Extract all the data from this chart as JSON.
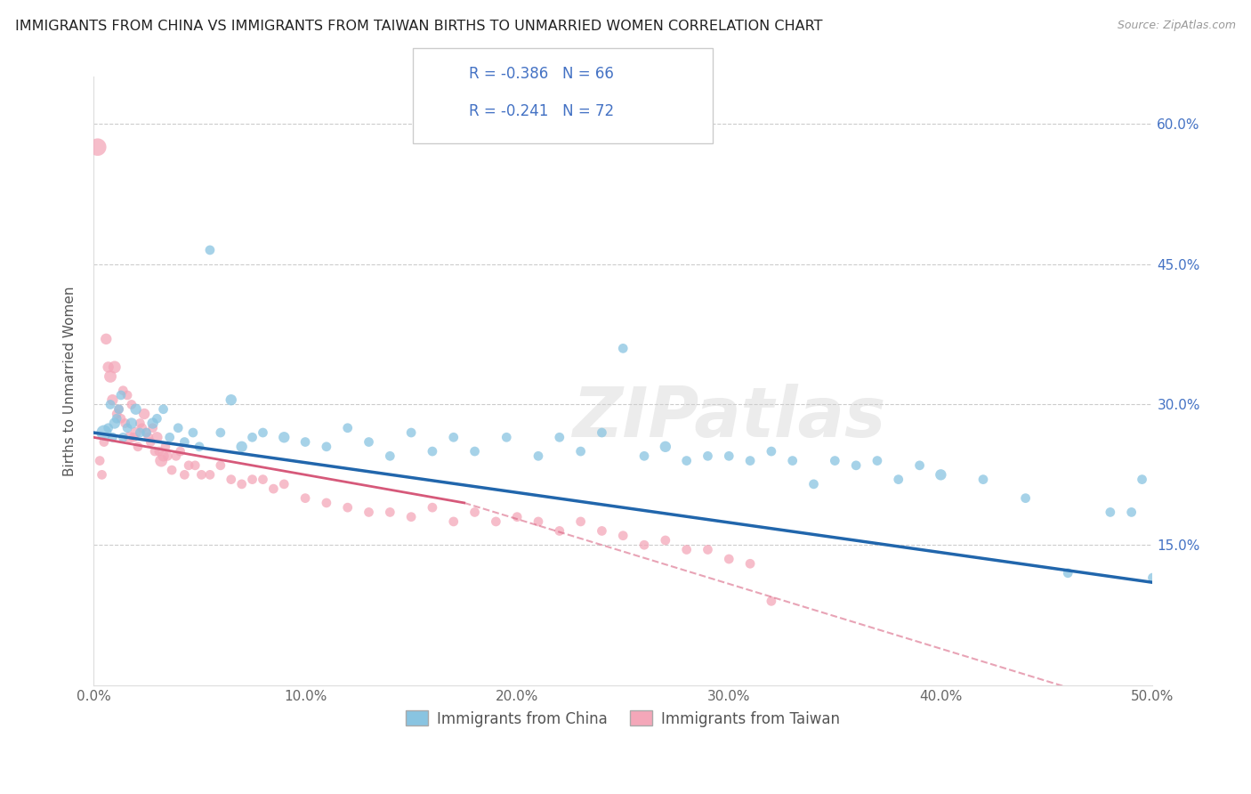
{
  "title": "IMMIGRANTS FROM CHINA VS IMMIGRANTS FROM TAIWAN BIRTHS TO UNMARRIED WOMEN CORRELATION CHART",
  "source": "Source: ZipAtlas.com",
  "ylabel": "Births to Unmarried Women",
  "xlim": [
    0.0,
    0.5
  ],
  "ylim": [
    0.0,
    0.65
  ],
  "xtick_labels": [
    "0.0%",
    "10.0%",
    "20.0%",
    "30.0%",
    "40.0%",
    "50.0%"
  ],
  "xtick_vals": [
    0.0,
    0.1,
    0.2,
    0.3,
    0.4,
    0.5
  ],
  "ytick_labels_right": [
    "15.0%",
    "30.0%",
    "45.0%",
    "60.0%"
  ],
  "ytick_vals": [
    0.15,
    0.3,
    0.45,
    0.6
  ],
  "color_china": "#89c4e1",
  "color_taiwan": "#f4a7b9",
  "color_trendline_china": "#2166ac",
  "color_trendline_taiwan": "#d6597a",
  "background_color": "#ffffff",
  "grid_color": "#cccccc",
  "watermark": "ZIPatlas",
  "watermark_color": "#d0d0d0",
  "legend_label_china": "Immigrants from China",
  "legend_label_taiwan": "Immigrants from Taiwan",
  "china_x": [
    0.005,
    0.007,
    0.008,
    0.009,
    0.01,
    0.011,
    0.012,
    0.013,
    0.014,
    0.016,
    0.018,
    0.02,
    0.022,
    0.025,
    0.028,
    0.03,
    0.033,
    0.036,
    0.04,
    0.043,
    0.047,
    0.05,
    0.055,
    0.06,
    0.065,
    0.07,
    0.075,
    0.08,
    0.09,
    0.1,
    0.11,
    0.12,
    0.13,
    0.14,
    0.15,
    0.16,
    0.17,
    0.18,
    0.195,
    0.21,
    0.22,
    0.23,
    0.24,
    0.25,
    0.26,
    0.27,
    0.28,
    0.29,
    0.3,
    0.31,
    0.32,
    0.33,
    0.34,
    0.35,
    0.36,
    0.37,
    0.38,
    0.39,
    0.4,
    0.42,
    0.44,
    0.46,
    0.48,
    0.49,
    0.495,
    0.5
  ],
  "china_y": [
    0.27,
    0.275,
    0.3,
    0.265,
    0.28,
    0.285,
    0.295,
    0.31,
    0.265,
    0.275,
    0.28,
    0.295,
    0.27,
    0.27,
    0.28,
    0.285,
    0.295,
    0.265,
    0.275,
    0.26,
    0.27,
    0.255,
    0.465,
    0.27,
    0.305,
    0.255,
    0.265,
    0.27,
    0.265,
    0.26,
    0.255,
    0.275,
    0.26,
    0.245,
    0.27,
    0.25,
    0.265,
    0.25,
    0.265,
    0.245,
    0.265,
    0.25,
    0.27,
    0.36,
    0.245,
    0.255,
    0.24,
    0.245,
    0.245,
    0.24,
    0.25,
    0.24,
    0.215,
    0.24,
    0.235,
    0.24,
    0.22,
    0.235,
    0.225,
    0.22,
    0.2,
    0.12,
    0.185,
    0.185,
    0.22,
    0.115
  ],
  "china_sizes": [
    150,
    60,
    60,
    60,
    80,
    60,
    60,
    60,
    60,
    60,
    80,
    80,
    60,
    60,
    80,
    60,
    60,
    60,
    60,
    60,
    60,
    60,
    60,
    60,
    80,
    80,
    60,
    60,
    80,
    60,
    60,
    60,
    60,
    60,
    60,
    60,
    60,
    60,
    60,
    60,
    60,
    60,
    60,
    60,
    60,
    80,
    60,
    60,
    60,
    60,
    60,
    60,
    60,
    60,
    60,
    60,
    60,
    60,
    80,
    60,
    60,
    60,
    60,
    60,
    60,
    60
  ],
  "taiwan_x": [
    0.002,
    0.003,
    0.004,
    0.005,
    0.006,
    0.007,
    0.008,
    0.009,
    0.01,
    0.011,
    0.012,
    0.013,
    0.014,
    0.015,
    0.016,
    0.017,
    0.018,
    0.019,
    0.02,
    0.021,
    0.022,
    0.023,
    0.024,
    0.025,
    0.026,
    0.027,
    0.028,
    0.029,
    0.03,
    0.031,
    0.032,
    0.033,
    0.034,
    0.035,
    0.037,
    0.039,
    0.041,
    0.043,
    0.045,
    0.048,
    0.051,
    0.055,
    0.06,
    0.065,
    0.07,
    0.075,
    0.08,
    0.085,
    0.09,
    0.1,
    0.11,
    0.12,
    0.13,
    0.14,
    0.15,
    0.16,
    0.17,
    0.18,
    0.19,
    0.2,
    0.21,
    0.22,
    0.23,
    0.24,
    0.25,
    0.26,
    0.27,
    0.28,
    0.29,
    0.3,
    0.31,
    0.32
  ],
  "taiwan_y": [
    0.575,
    0.24,
    0.225,
    0.26,
    0.37,
    0.34,
    0.33,
    0.305,
    0.34,
    0.29,
    0.295,
    0.285,
    0.315,
    0.28,
    0.31,
    0.265,
    0.3,
    0.265,
    0.27,
    0.255,
    0.28,
    0.275,
    0.29,
    0.27,
    0.265,
    0.26,
    0.275,
    0.25,
    0.265,
    0.25,
    0.24,
    0.245,
    0.255,
    0.245,
    0.23,
    0.245,
    0.25,
    0.225,
    0.235,
    0.235,
    0.225,
    0.225,
    0.235,
    0.22,
    0.215,
    0.22,
    0.22,
    0.21,
    0.215,
    0.2,
    0.195,
    0.19,
    0.185,
    0.185,
    0.18,
    0.19,
    0.175,
    0.185,
    0.175,
    0.18,
    0.175,
    0.165,
    0.175,
    0.165,
    0.16,
    0.15,
    0.155,
    0.145,
    0.145,
    0.135,
    0.13,
    0.09
  ],
  "taiwan_sizes": [
    200,
    60,
    60,
    60,
    80,
    80,
    100,
    80,
    100,
    60,
    60,
    60,
    60,
    60,
    60,
    80,
    60,
    60,
    80,
    60,
    60,
    60,
    80,
    60,
    60,
    60,
    60,
    60,
    80,
    60,
    100,
    80,
    60,
    60,
    60,
    60,
    60,
    60,
    60,
    60,
    60,
    60,
    60,
    60,
    60,
    60,
    60,
    60,
    60,
    60,
    60,
    60,
    60,
    60,
    60,
    60,
    60,
    60,
    60,
    60,
    60,
    60,
    60,
    60,
    60,
    60,
    60,
    60,
    60,
    60,
    60,
    60
  ]
}
